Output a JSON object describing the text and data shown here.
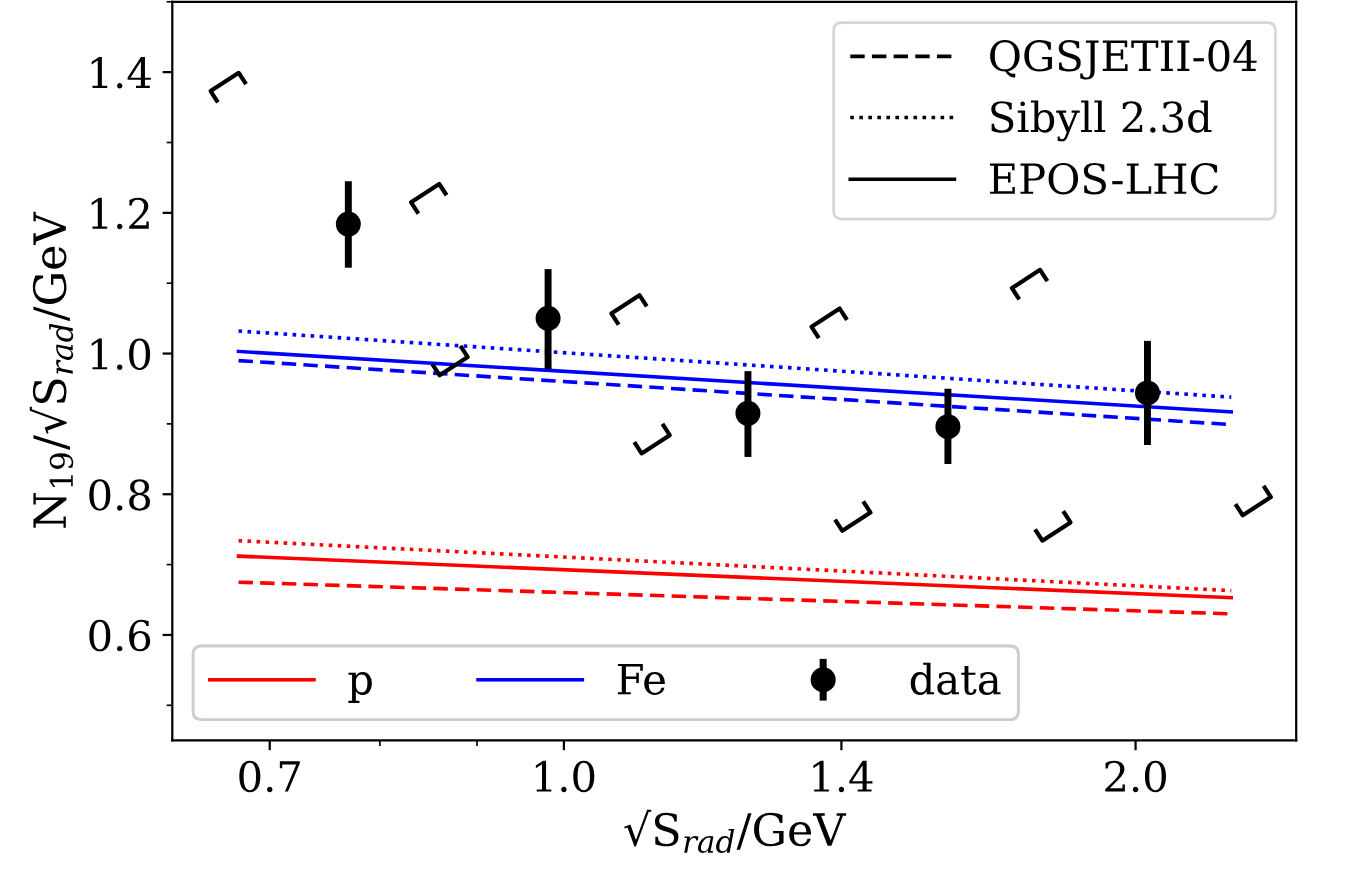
{
  "chart_data": {
    "type": "line",
    "xlabel": "√S$_{rad}$/GeV",
    "ylabel": "N$_{19}$/√S$_{rad}$/GeV",
    "annotations": [
      "QGSJETII-04",
      "Sibyll 2.3d",
      "EPOS-LHC"
    ],
    "log": "x",
    "xlim": [
      0.622,
      2.43
    ],
    "xticks": [
      {
        "value": 0.7,
        "label": "0.7"
      },
      {
        "value": 1.0,
        "label": "1.0"
      },
      {
        "value": 1.4,
        "label": "1.4"
      },
      {
        "value": 2.0,
        "label": "2.0"
      }
    ],
    "ylim": [
      0.45,
      1.5
    ],
    "yticks": [
      0.6,
      0.8,
      {
        "value": 1.0,
        "label": "1.0"
      },
      1.2,
      1.4
    ],
    "grid": false,
    "legend": "bottom left",
    "series": [
      {
        "color": "#ff0000",
        "line_style": "dashed",
        "x": [
          0.674,
          2.246
        ],
        "values": [
          0.675,
          0.63
        ]
      },
      {
        "color": "#ff0000",
        "line_style": "dotted",
        "x": [
          0.674,
          2.246
        ],
        "values": [
          0.734,
          0.663
        ]
      },
      {
        "name": "p",
        "color": "#ff0000",
        "line_style": "solid",
        "x": [
          0.674,
          2.246
        ],
        "values": [
          0.712,
          0.653
        ]
      },
      {
        "color": "#0000ff",
        "line_style": "dashed",
        "x": [
          0.674,
          2.246
        ],
        "values": [
          0.99,
          0.899
        ]
      },
      {
        "color": "#0000ff",
        "line_style": "dotted",
        "x": [
          0.674,
          2.246
        ],
        "values": [
          1.032,
          0.938
        ]
      },
      {
        "name": "Fe",
        "color": "#0000ff",
        "line_style": "solid",
        "x": [
          0.674,
          2.246
        ],
        "values": [
          1.003,
          0.917
        ]
      },
      {
        "name": "data",
        "type": "scatter",
        "color": "#000000",
        "marker": "circle",
        "x": [
          0.77,
          0.981,
          1.25,
          1.593,
          2.029
        ],
        "values": [
          1.184,
          1.05,
          0.915,
          0.896,
          0.944
        ],
        "errors": [
          [
            1.122,
            1.245
          ],
          [
            0.978,
            1.12
          ],
          [
            0.853,
            0.975
          ],
          [
            0.843,
            0.95
          ],
          [
            0.87,
            1.018
          ]
        ]
      },
      {
        "type": "scatter",
        "color": "#000000",
        "marker": "cross",
        "x": [
          0.665,
          0.848,
          1.081,
          1.378,
          1.757
        ],
        "values": [
          1.38,
          1.222,
          1.064,
          1.045,
          1.1
        ]
      },
      {
        "type": "scatter",
        "color": "#000000",
        "marker": "cross",
        "x": [
          0.872,
          1.114,
          1.421,
          1.811,
          2.309
        ],
        "values": [
          0.988,
          0.877,
          0.767,
          0.753,
          0.789
        ]
      }
    ]
  }
}
